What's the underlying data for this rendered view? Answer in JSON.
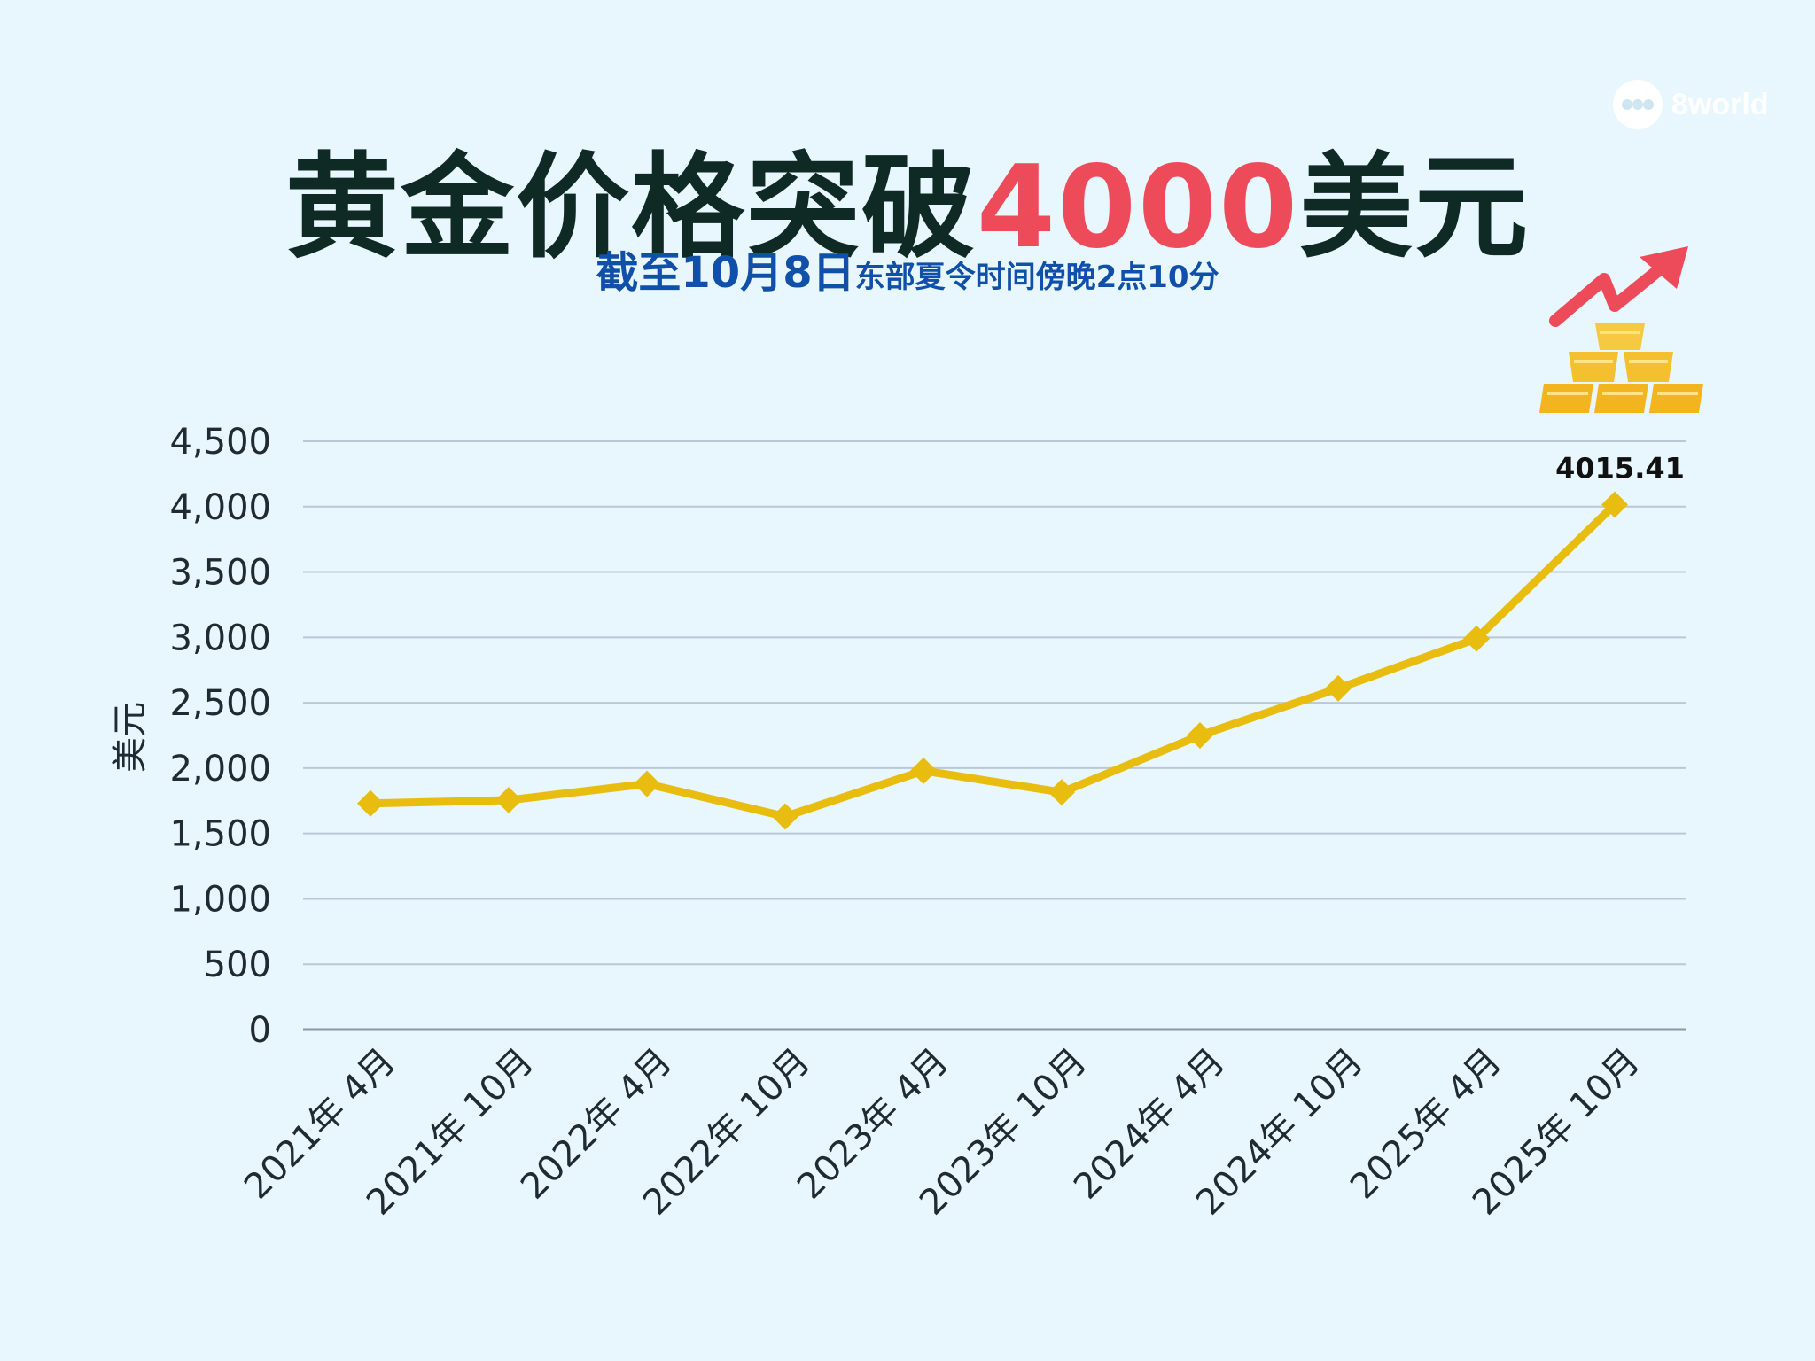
{
  "brand": {
    "logo_text": "8world"
  },
  "header": {
    "title_prefix": "黄金价格突破",
    "title_highlight": "4000",
    "title_suffix": "美元",
    "subtitle_big": "截至10月8日",
    "subtitle_small": "东部夏令时间傍晚2点10分"
  },
  "colors": {
    "background": "#e8f6fd",
    "line": "#e9bd10",
    "highlight": "#ee4b5a",
    "subtitle": "#1150a8",
    "title": "#0f2a24",
    "grid": "#b8c8d4"
  },
  "icons": [
    "8world-logo-icon",
    "trend-arrow-icon",
    "gold-bars-icon"
  ],
  "chart_data": {
    "type": "line",
    "title": "黄金价格突破4000美元",
    "subtitle": "截至10月8日东部夏令时间傍晚2点10分",
    "xlabel": "",
    "ylabel": "美元",
    "ylim": [
      0,
      4500
    ],
    "yticks": [
      "0",
      "500",
      "1,000",
      "1,500",
      "2,000",
      "2,500",
      "3,000",
      "3,500",
      "4,000",
      "4,500"
    ],
    "ytick_values": [
      0,
      500,
      1000,
      1500,
      2000,
      2500,
      3000,
      3500,
      4000,
      4500
    ],
    "categories": [
      "2021年 4月",
      "2021年 10月",
      "2022年 4月",
      "2022年 10月",
      "2023年 4月",
      "2023年 10月",
      "2024年 4月",
      "2024年 10月",
      "2025年 4月",
      "2025年 10月"
    ],
    "series": [
      {
        "values": [
          1730,
          1755,
          1880,
          1630,
          1980,
          1815,
          2250,
          2610,
          2990,
          4015.41
        ]
      }
    ],
    "annotations": [
      {
        "index": 9,
        "text": "4015.41"
      }
    ],
    "grid": true,
    "legend": "none"
  }
}
